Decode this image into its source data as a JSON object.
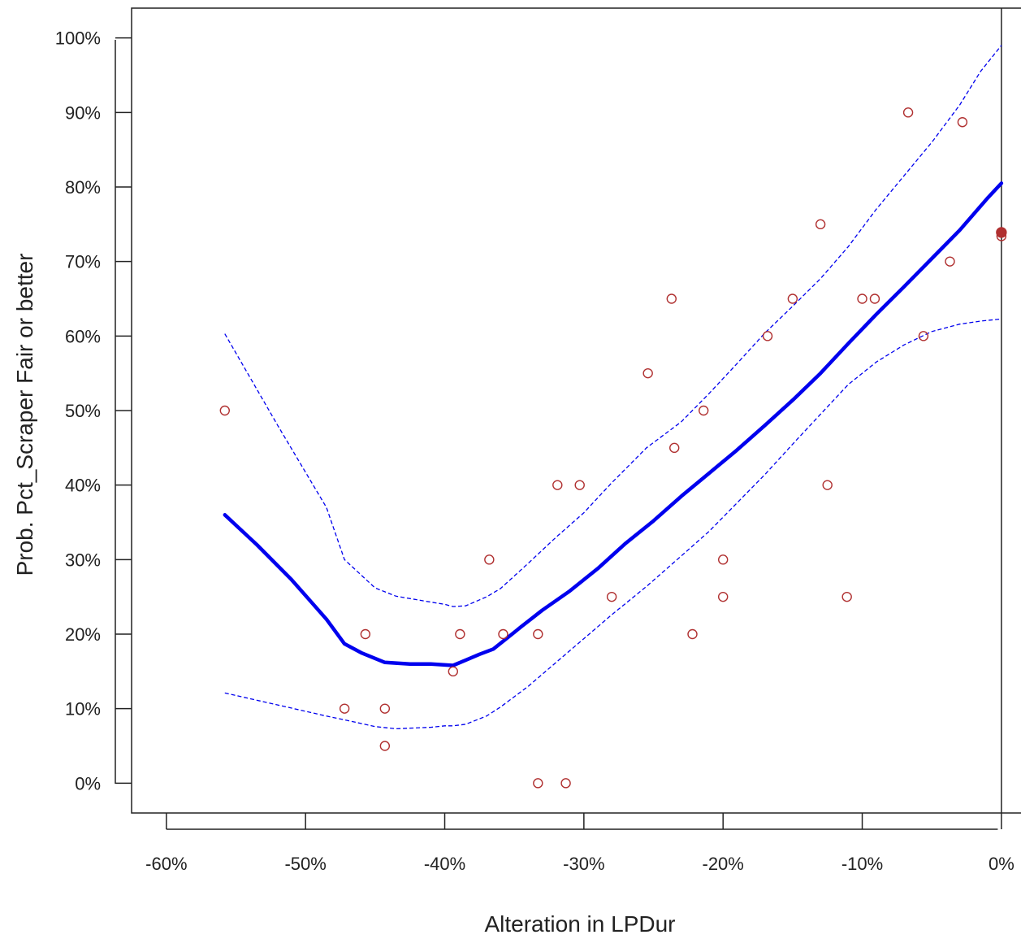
{
  "chart_data": {
    "type": "scatter",
    "title": "",
    "xlabel": "Alteration in  LPDur",
    "ylabel": "Prob. Pct_Scraper  Fair or better",
    "xlim": [
      -62.5,
      1.7
    ],
    "ylim": [
      -4,
      104
    ],
    "x_ticks": [
      -60,
      -50,
      -40,
      -30,
      -20,
      -10,
      0
    ],
    "x_tick_labels": [
      "-60%",
      "-50%",
      "-40%",
      "-30%",
      "-20%",
      "-10%",
      "0%"
    ],
    "y_ticks": [
      0,
      10,
      20,
      30,
      40,
      50,
      60,
      70,
      80,
      90,
      100
    ],
    "y_tick_labels": [
      "0%",
      "10%",
      "20%",
      "30%",
      "40%",
      "50%",
      "60%",
      "70%",
      "80%",
      "90%",
      "100%"
    ],
    "reference_line_x": 0,
    "grid": false,
    "colors": {
      "points": "#b03030",
      "highlight_point": "#b03030",
      "fit": "#0000ee",
      "ci": "#0000ee",
      "axes": "#222222"
    },
    "points": [
      {
        "x": -55.8,
        "y": 50
      },
      {
        "x": -47.2,
        "y": 10
      },
      {
        "x": -45.7,
        "y": 20
      },
      {
        "x": -44.3,
        "y": 10
      },
      {
        "x": -44.3,
        "y": 5
      },
      {
        "x": -39.4,
        "y": 15
      },
      {
        "x": -38.9,
        "y": 20
      },
      {
        "x": -36.8,
        "y": 30
      },
      {
        "x": -35.8,
        "y": 20
      },
      {
        "x": -33.3,
        "y": 20
      },
      {
        "x": -33.3,
        "y": 0
      },
      {
        "x": -31.9,
        "y": 40
      },
      {
        "x": -31.3,
        "y": 0
      },
      {
        "x": -30.3,
        "y": 40
      },
      {
        "x": -28.0,
        "y": 25
      },
      {
        "x": -25.4,
        "y": 55
      },
      {
        "x": -23.7,
        "y": 65
      },
      {
        "x": -23.5,
        "y": 45
      },
      {
        "x": -22.2,
        "y": 20
      },
      {
        "x": -21.4,
        "y": 50
      },
      {
        "x": -20.0,
        "y": 30
      },
      {
        "x": -20.0,
        "y": 25
      },
      {
        "x": -16.8,
        "y": 60
      },
      {
        "x": -15.0,
        "y": 65
      },
      {
        "x": -13.0,
        "y": 75
      },
      {
        "x": -12.5,
        "y": 40
      },
      {
        "x": -11.1,
        "y": 25
      },
      {
        "x": -10.0,
        "y": 65
      },
      {
        "x": -9.1,
        "y": 65
      },
      {
        "x": -6.7,
        "y": 90
      },
      {
        "x": -5.6,
        "y": 60
      },
      {
        "x": -3.7,
        "y": 70
      },
      {
        "x": -2.8,
        "y": 88.7
      },
      {
        "x": 0.0,
        "y": 73.4
      }
    ],
    "highlight_point": {
      "x": 0.0,
      "y": 73.9
    },
    "fit_line": {
      "x": [
        -55.8,
        -53.5,
        -51,
        -48.5,
        -47.2,
        -46,
        -44.3,
        -42.5,
        -41,
        -39.4,
        -38.5,
        -37.5,
        -36.5,
        -34.5,
        -33,
        -31,
        -29,
        -27,
        -25,
        -23,
        -21,
        -19,
        -17,
        -15,
        -13,
        -11,
        -9,
        -7,
        -5,
        -3,
        -1,
        0
      ],
      "y": [
        36,
        32,
        27.3,
        22,
        18.7,
        17.5,
        16.2,
        16,
        16,
        15.8,
        16.5,
        17.3,
        18,
        21,
        23.2,
        25.8,
        28.8,
        32.2,
        35.2,
        38.5,
        41.6,
        44.7,
        48,
        51.4,
        55,
        59,
        62.9,
        66.6,
        70.4,
        74.2,
        78.5,
        80.5
      ]
    },
    "ci_upper": {
      "x": [
        -55.8,
        -52,
        -48.5,
        -47.2,
        -45,
        -43.5,
        -41,
        -40,
        -39.4,
        -38.5,
        -37,
        -36,
        -34,
        -32,
        -30,
        -28,
        -25.5,
        -23,
        -21,
        -19,
        -17,
        -15,
        -13,
        -11,
        -9,
        -7,
        -5,
        -3,
        -1.5,
        0
      ],
      "y": [
        60.3,
        48,
        37,
        30,
        26.2,
        25.1,
        24.3,
        24,
        23.7,
        23.8,
        25,
        26.1,
        29.5,
        33,
        36.3,
        40.3,
        45,
        48.5,
        52.3,
        56.3,
        60.4,
        64,
        67.7,
        72,
        77,
        81.5,
        86,
        91,
        95.5,
        99
      ]
    },
    "ci_lower": {
      "x": [
        -55.8,
        -52,
        -48.5,
        -47.2,
        -45,
        -43.5,
        -41,
        -40,
        -39.4,
        -38.5,
        -37,
        -36,
        -34,
        -32,
        -30,
        -28,
        -25.5,
        -23,
        -21,
        -19,
        -17,
        -15,
        -13,
        -11,
        -9,
        -7,
        -5,
        -3,
        -1.5,
        0
      ],
      "y": [
        12.1,
        10.5,
        9,
        8.5,
        7.6,
        7.3,
        7.5,
        7.7,
        7.7,
        7.9,
        9,
        10.2,
        13,
        16.2,
        19.4,
        22.6,
        26.4,
        30.5,
        33.8,
        37.6,
        41.4,
        45.5,
        49.5,
        53.5,
        56.5,
        58.8,
        60.6,
        61.6,
        62,
        62.3
      ]
    }
  }
}
